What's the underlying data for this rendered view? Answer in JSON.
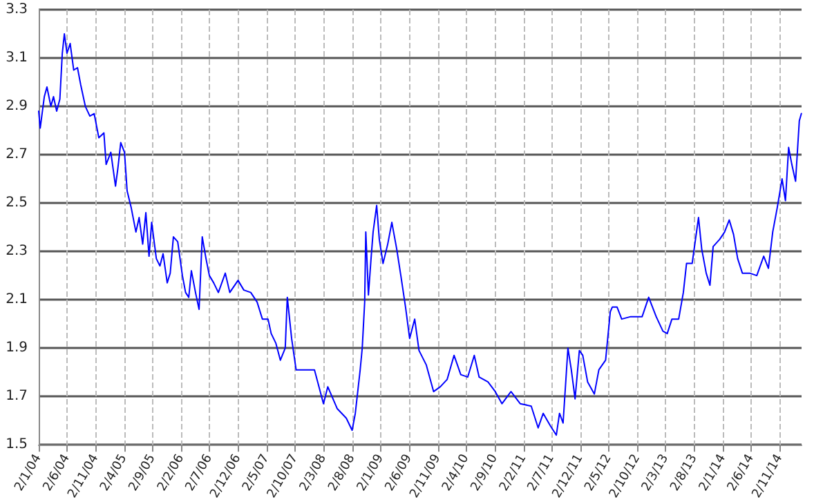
{
  "chart_data": {
    "type": "line",
    "line_style": "solid",
    "marker": "none",
    "grid": true,
    "x": [
      "2004-01-02",
      "2004-01-10",
      "2004-02-01",
      "2004-02-15",
      "2004-03-07",
      "2004-03-21",
      "2004-04-07",
      "2004-04-24",
      "2004-05-07",
      "2004-05-18",
      "2004-06-01",
      "2004-06-18",
      "2004-07-07",
      "2004-07-27",
      "2004-08-13",
      "2004-09-07",
      "2004-10-01",
      "2004-10-24",
      "2004-11-18",
      "2004-12-15",
      "2004-12-27",
      "2005-01-21",
      "2005-02-15",
      "2005-02-27",
      "2005-03-15",
      "2005-04-04",
      "2005-04-18",
      "2005-05-10",
      "2005-06-04",
      "2005-06-21",
      "2005-07-10",
      "2005-07-27",
      "2005-08-13",
      "2005-08-27",
      "2005-09-21",
      "2005-10-10",
      "2005-10-27",
      "2005-11-18",
      "2005-12-04",
      "2005-12-21",
      "2006-01-13",
      "2006-02-07",
      "2006-02-24",
      "2006-03-13",
      "2006-03-27",
      "2006-04-18",
      "2006-05-07",
      "2006-05-24",
      "2006-06-13",
      "2006-07-01",
      "2006-07-24",
      "2006-08-18",
      "2006-09-24",
      "2006-10-18",
      "2006-12-01",
      "2007-01-01",
      "2007-02-07",
      "2007-03-13",
      "2007-04-10",
      "2007-05-10",
      "2007-05-27",
      "2007-06-21",
      "2007-07-15",
      "2007-08-10",
      "2007-08-21",
      "2007-09-13",
      "2007-10-07",
      "2007-11-24",
      "2008-01-13",
      "2008-03-01",
      "2008-03-24",
      "2008-05-13",
      "2008-07-01",
      "2008-08-01",
      "2008-08-18",
      "2008-09-13",
      "2008-09-24",
      "2008-10-07",
      "2008-10-13",
      "2008-10-27",
      "2008-11-10",
      "2008-11-21",
      "2008-12-10",
      "2008-12-24",
      "2009-01-13",
      "2009-02-07",
      "2009-03-01",
      "2009-03-27",
      "2009-04-18",
      "2009-05-13",
      "2009-06-04",
      "2009-07-01",
      "2009-07-24",
      "2009-09-01",
      "2009-10-10",
      "2009-11-15",
      "2009-12-21",
      "2010-01-27",
      "2010-03-04",
      "2010-04-10",
      "2010-05-15",
      "2010-06-10",
      "2010-07-27",
      "2010-09-04",
      "2010-10-10",
      "2010-11-27",
      "2011-01-15",
      "2011-03-15",
      "2011-04-21",
      "2011-05-18",
      "2011-06-24",
      "2011-07-27",
      "2011-08-13",
      "2011-09-01",
      "2011-09-27",
      "2011-10-15",
      "2011-11-04",
      "2011-11-27",
      "2011-12-15",
      "2012-01-10",
      "2012-02-15",
      "2012-03-10",
      "2012-04-15",
      "2012-05-10",
      "2012-05-21",
      "2012-06-15",
      "2012-07-10",
      "2012-08-27",
      "2012-10-27",
      "2012-12-01",
      "2013-01-10",
      "2013-02-15",
      "2013-03-10",
      "2013-04-04",
      "2013-05-10",
      "2013-06-04",
      "2013-06-21",
      "2013-07-21",
      "2013-08-24",
      "2013-09-10",
      "2013-10-04",
      "2013-10-24",
      "2013-11-10",
      "2013-12-15",
      "2014-01-10",
      "2014-02-04",
      "2014-02-27",
      "2014-03-21",
      "2014-04-15",
      "2014-05-24",
      "2014-07-01",
      "2014-08-07",
      "2014-09-01",
      "2014-09-24",
      "2014-10-18",
      "2014-11-13",
      "2014-12-01",
      "2014-12-18",
      "2015-01-04",
      "2015-01-24",
      "2015-02-13",
      "2015-02-24"
    ],
    "series": [
      {
        "color": "#0000ff",
        "values": [
          2.88,
          2.81,
          2.94,
          2.98,
          2.9,
          2.94,
          2.88,
          2.93,
          3.12,
          3.2,
          3.12,
          3.16,
          3.05,
          3.06,
          2.99,
          2.9,
          2.86,
          2.87,
          2.77,
          2.79,
          2.66,
          2.71,
          2.57,
          2.64,
          2.75,
          2.71,
          2.55,
          2.48,
          2.38,
          2.44,
          2.33,
          2.46,
          2.28,
          2.42,
          2.27,
          2.24,
          2.29,
          2.17,
          2.21,
          2.36,
          2.34,
          2.2,
          2.13,
          2.11,
          2.22,
          2.13,
          2.06,
          2.36,
          2.27,
          2.2,
          2.17,
          2.13,
          2.21,
          2.13,
          2.18,
          2.14,
          2.13,
          2.09,
          2.02,
          2.02,
          1.96,
          1.92,
          1.85,
          1.9,
          2.11,
          1.94,
          1.81,
          1.81,
          1.81,
          1.67,
          1.74,
          1.65,
          1.61,
          1.56,
          1.63,
          1.81,
          1.9,
          2.09,
          2.38,
          2.12,
          2.27,
          2.38,
          2.49,
          2.35,
          2.25,
          2.33,
          2.42,
          2.31,
          2.2,
          2.07,
          1.94,
          2.02,
          1.89,
          1.83,
          1.72,
          1.74,
          1.77,
          1.87,
          1.79,
          1.78,
          1.87,
          1.78,
          1.76,
          1.72,
          1.67,
          1.72,
          1.67,
          1.66,
          1.57,
          1.63,
          1.58,
          1.54,
          1.63,
          1.59,
          1.9,
          1.81,
          1.69,
          1.89,
          1.87,
          1.76,
          1.71,
          1.81,
          1.85,
          2.05,
          2.07,
          2.07,
          2.02,
          2.03,
          2.03,
          2.11,
          2.03,
          1.97,
          1.96,
          2.02,
          2.02,
          2.13,
          2.25,
          2.25,
          2.44,
          2.31,
          2.21,
          2.16,
          2.32,
          2.35,
          2.38,
          2.43,
          2.37,
          2.27,
          2.21,
          2.21,
          2.2,
          2.28,
          2.23,
          2.38,
          2.48,
          2.6,
          2.51,
          2.73,
          2.66,
          2.59,
          2.84,
          2.87
        ]
      }
    ],
    "xlim": [
      "2004-01-02",
      "2015-02-25"
    ],
    "xticks": [
      {
        "value": "2004-01-02",
        "label": "2/1/04"
      },
      {
        "value": "2004-06-02",
        "label": "2/6/04"
      },
      {
        "value": "2004-11-02",
        "label": "2/11/04"
      },
      {
        "value": "2005-04-02",
        "label": "2/4/05"
      },
      {
        "value": "2005-09-02",
        "label": "2/9/05"
      },
      {
        "value": "2006-02-02",
        "label": "2/2/06"
      },
      {
        "value": "2006-07-02",
        "label": "2/7/06"
      },
      {
        "value": "2006-12-02",
        "label": "2/12/06"
      },
      {
        "value": "2007-05-02",
        "label": "2/5/07"
      },
      {
        "value": "2007-10-02",
        "label": "2/10/07"
      },
      {
        "value": "2008-03-02",
        "label": "2/3/08"
      },
      {
        "value": "2008-08-02",
        "label": "2/8/08"
      },
      {
        "value": "2009-01-02",
        "label": "2/1/09"
      },
      {
        "value": "2009-06-02",
        "label": "2/6/09"
      },
      {
        "value": "2009-11-02",
        "label": "2/11/09"
      },
      {
        "value": "2010-04-02",
        "label": "2/4/10"
      },
      {
        "value": "2010-09-02",
        "label": "2/9/10"
      },
      {
        "value": "2011-02-02",
        "label": "2/2/11"
      },
      {
        "value": "2011-07-02",
        "label": "2/7/11"
      },
      {
        "value": "2011-12-02",
        "label": "2/12/11"
      },
      {
        "value": "2012-05-02",
        "label": "2/5/12"
      },
      {
        "value": "2012-10-02",
        "label": "2/10/12"
      },
      {
        "value": "2013-03-02",
        "label": "2/3/13"
      },
      {
        "value": "2013-08-02",
        "label": "2/8/13"
      },
      {
        "value": "2014-01-02",
        "label": "2/1/14"
      },
      {
        "value": "2014-06-02",
        "label": "2/6/14"
      },
      {
        "value": "2014-11-02",
        "label": "2/11/14"
      }
    ],
    "ylim": [
      1.5,
      3.3
    ],
    "yticks": [
      {
        "value": 1.5,
        "label": "1.5"
      },
      {
        "value": 1.7,
        "label": "1.7"
      },
      {
        "value": 1.9,
        "label": "1.9"
      },
      {
        "value": 2.1,
        "label": "2.1"
      },
      {
        "value": 2.3,
        "label": "2.3"
      },
      {
        "value": 2.5,
        "label": "2.5"
      },
      {
        "value": 2.7,
        "label": "2.7"
      },
      {
        "value": 2.9,
        "label": "2.9"
      },
      {
        "value": 3.1,
        "label": "3.1"
      },
      {
        "value": 3.3,
        "label": "3.3"
      }
    ]
  }
}
